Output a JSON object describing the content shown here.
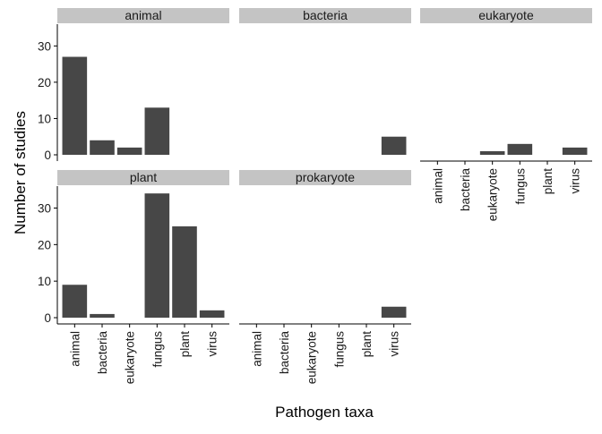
{
  "chart_data": {
    "type": "bar",
    "xlabel": "Pathogen taxa",
    "ylabel": "Number of studies",
    "categories": [
      "animal",
      "bacteria",
      "eukaryote",
      "fungus",
      "plant",
      "virus"
    ],
    "ylim": [
      0,
      36
    ],
    "yticks": [
      0,
      10,
      20,
      30
    ],
    "grid": false,
    "panels": [
      {
        "name": "animal",
        "values": [
          27,
          4,
          2,
          13,
          0,
          0
        ]
      },
      {
        "name": "bacteria",
        "values": [
          0,
          0,
          0,
          0,
          0,
          5
        ]
      },
      {
        "name": "eukaryote",
        "values": [
          0,
          0,
          1,
          3,
          0,
          2
        ]
      },
      {
        "name": "plant",
        "values": [
          9,
          1,
          0,
          34,
          25,
          2
        ]
      },
      {
        "name": "prokaryote",
        "values": [
          0,
          0,
          0,
          0,
          0,
          3
        ]
      }
    ]
  },
  "colors": {
    "bar": "#474747",
    "strip": "#c4c4c4",
    "axis": "#000000"
  }
}
